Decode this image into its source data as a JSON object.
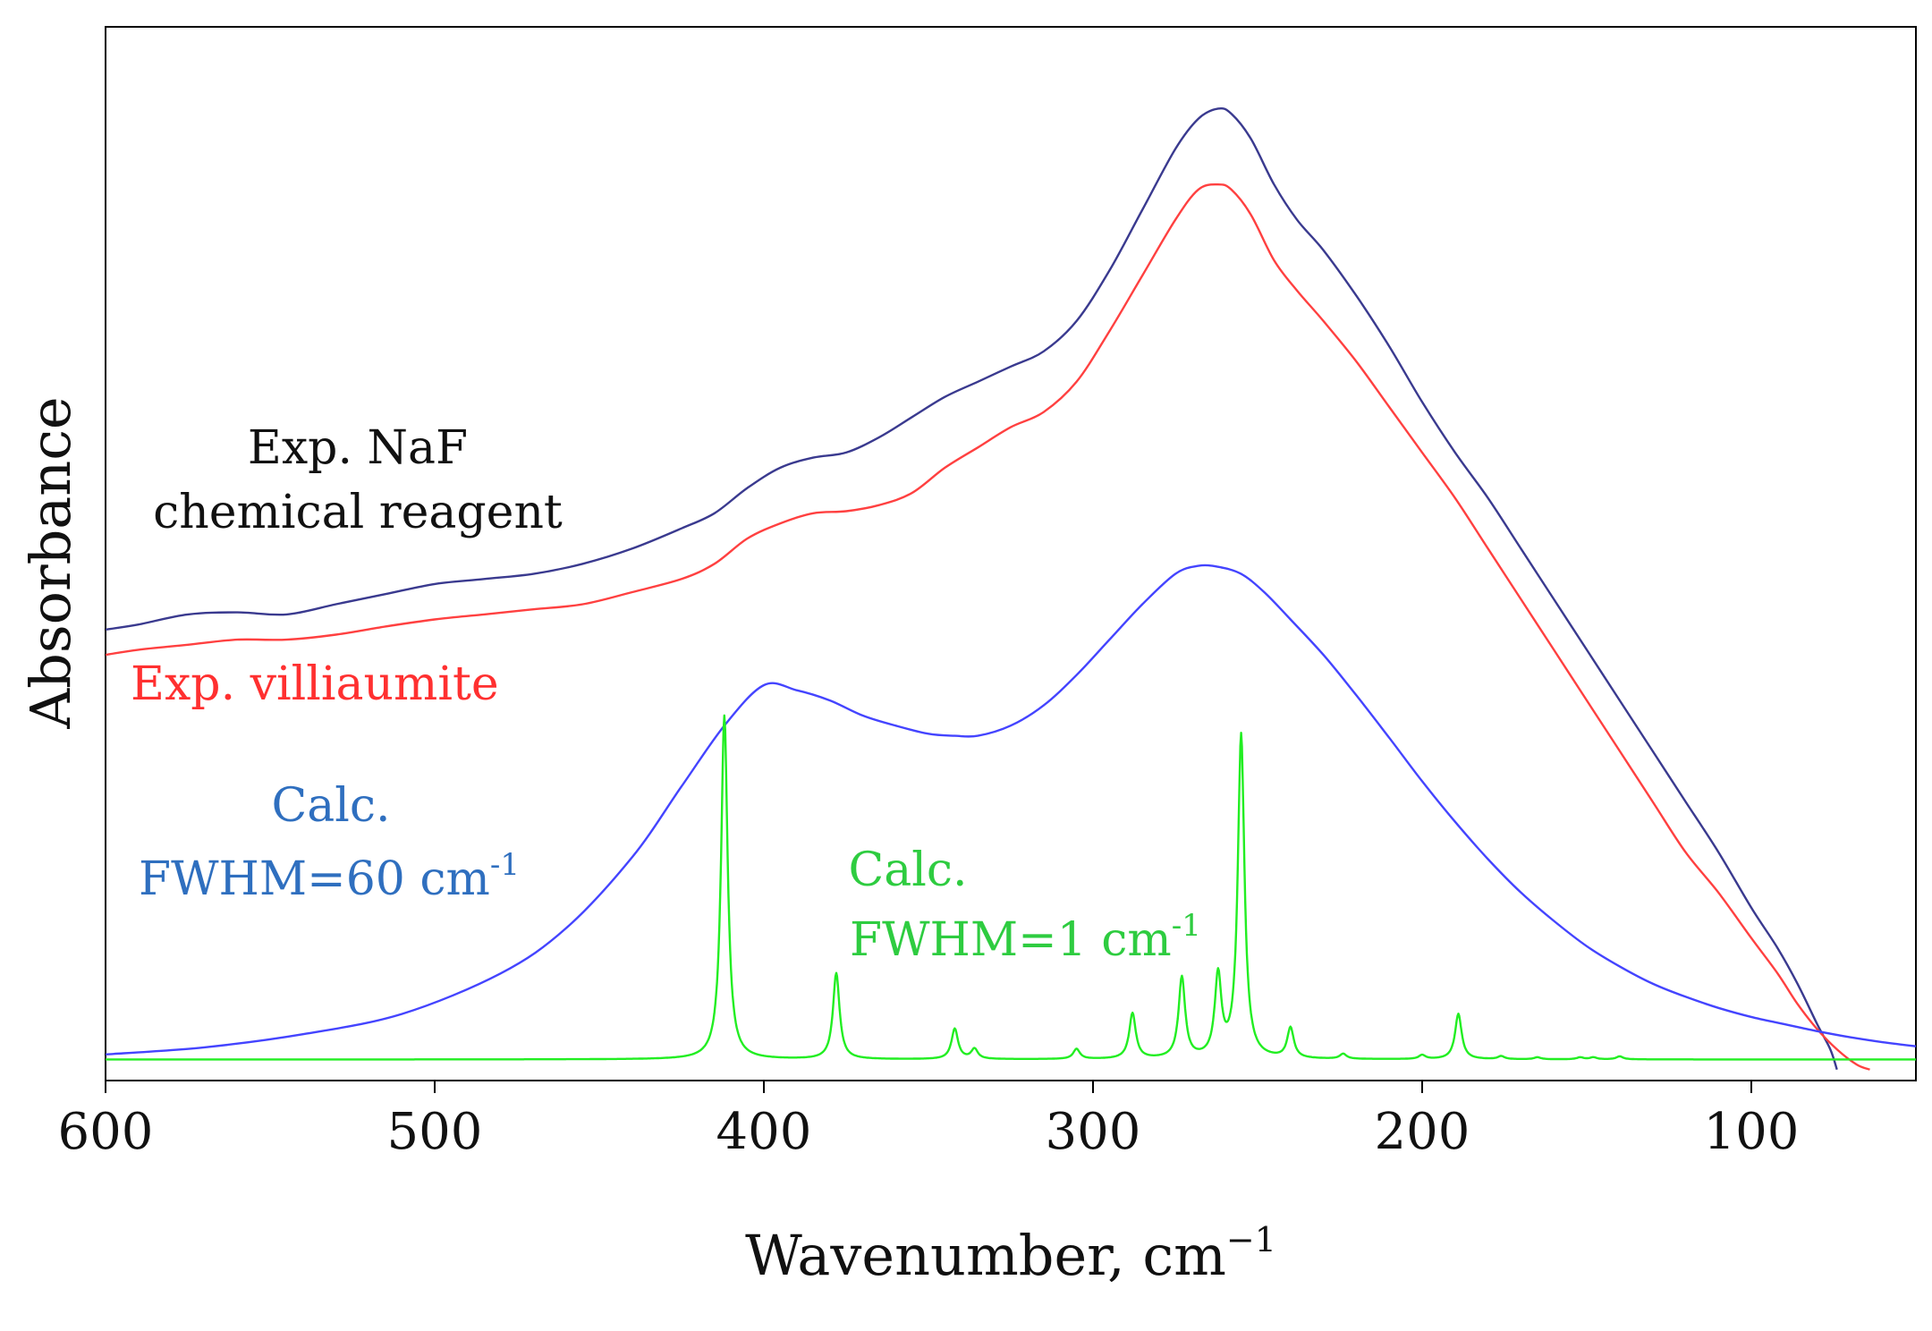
{
  "chart_data": {
    "type": "line",
    "title": "",
    "xlabel": "Wavenumber, cm",
    "xlabel_superscript": "−1",
    "ylabel": "Absorbance",
    "xlim": [
      600,
      50
    ],
    "ylim": [
      0,
      1
    ],
    "x_ticks": [
      600,
      500,
      400,
      300,
      200,
      100
    ],
    "grid": false,
    "colors": {
      "exp_naf": "#3a3a8f",
      "exp_villiaumite": "#ff4040",
      "calc_fwhm60": "#4444ff",
      "calc_fwhm1": "#22ee22",
      "annotation_naf": "#111111",
      "annotation_villiaumite": "#ff3030",
      "annotation_calc60": "#2f6fbf",
      "annotation_calc1": "#2ecc40"
    },
    "annotations": {
      "naf_line1": "Exp. NaF",
      "naf_line2": "chemical reagent",
      "villiaumite": "Exp. villiaumite",
      "calc60_line1": "Calc.",
      "calc60_line2": "FWHM=60 cm",
      "calc60_sup": "-1",
      "calc1_line1": "Calc.",
      "calc1_line2": "FWHM=1 cm",
      "calc1_sup": "-1"
    },
    "series": [
      {
        "name": "Exp. NaF chemical reagent",
        "color_key": "exp_naf",
        "x": [
          600,
          590,
          575,
          560,
          545,
          530,
          515,
          500,
          485,
          470,
          455,
          440,
          425,
          415,
          405,
          395,
          385,
          375,
          365,
          355,
          345,
          335,
          325,
          315,
          305,
          295,
          285,
          275,
          268,
          262,
          258,
          252,
          245,
          238,
          230,
          220,
          210,
          200,
          190,
          180,
          170,
          160,
          150,
          140,
          130,
          120,
          110,
          100,
          92,
          86,
          80,
          76,
          74
        ],
        "y": [
          0.425,
          0.43,
          0.44,
          0.442,
          0.44,
          0.45,
          0.46,
          0.47,
          0.475,
          0.48,
          0.49,
          0.505,
          0.525,
          0.54,
          0.565,
          0.585,
          0.595,
          0.6,
          0.615,
          0.635,
          0.655,
          0.67,
          0.685,
          0.7,
          0.73,
          0.78,
          0.84,
          0.9,
          0.93,
          0.94,
          0.935,
          0.91,
          0.865,
          0.83,
          0.8,
          0.755,
          0.705,
          0.65,
          0.6,
          0.555,
          0.505,
          0.455,
          0.405,
          0.355,
          0.305,
          0.255,
          0.205,
          0.15,
          0.11,
          0.075,
          0.035,
          0.01,
          -0.01
        ]
      },
      {
        "name": "Exp. villiaumite",
        "color_key": "exp_villiaumite",
        "x": [
          600,
          590,
          575,
          560,
          545,
          530,
          515,
          500,
          485,
          470,
          455,
          440,
          425,
          415,
          405,
          395,
          385,
          375,
          365,
          355,
          345,
          335,
          325,
          315,
          305,
          295,
          285,
          275,
          268,
          262,
          258,
          252,
          245,
          238,
          230,
          220,
          210,
          200,
          190,
          180,
          170,
          160,
          150,
          140,
          130,
          120,
          110,
          100,
          92,
          86,
          80,
          74,
          68,
          64
        ],
        "y": [
          0.4,
          0.405,
          0.41,
          0.415,
          0.415,
          0.42,
          0.428,
          0.435,
          0.44,
          0.445,
          0.45,
          0.462,
          0.475,
          0.49,
          0.515,
          0.53,
          0.54,
          0.542,
          0.548,
          0.56,
          0.585,
          0.605,
          0.625,
          0.64,
          0.67,
          0.72,
          0.775,
          0.83,
          0.86,
          0.865,
          0.86,
          0.835,
          0.79,
          0.76,
          0.73,
          0.69,
          0.645,
          0.6,
          0.555,
          0.505,
          0.455,
          0.405,
          0.355,
          0.305,
          0.255,
          0.205,
          0.165,
          0.12,
          0.085,
          0.055,
          0.03,
          0.01,
          -0.005,
          -0.01
        ]
      },
      {
        "name": "Calc. FWHM=60 cm-1",
        "color_key": "calc_fwhm60",
        "x": [
          600,
          570,
          540,
          510,
          480,
          460,
          440,
          425,
          412,
          400,
          390,
          380,
          370,
          360,
          350,
          342,
          335,
          325,
          315,
          305,
          295,
          285,
          275,
          268,
          262,
          255,
          248,
          240,
          230,
          220,
          210,
          200,
          190,
          180,
          170,
          160,
          150,
          140,
          130,
          120,
          110,
          100,
          90,
          80,
          70,
          60,
          50
        ],
        "y": [
          0.005,
          0.012,
          0.025,
          0.045,
          0.085,
          0.13,
          0.2,
          0.27,
          0.33,
          0.37,
          0.365,
          0.355,
          0.34,
          0.33,
          0.322,
          0.32,
          0.32,
          0.33,
          0.35,
          0.38,
          0.415,
          0.45,
          0.48,
          0.488,
          0.487,
          0.48,
          0.462,
          0.435,
          0.4,
          0.36,
          0.318,
          0.275,
          0.235,
          0.198,
          0.165,
          0.137,
          0.112,
          0.092,
          0.075,
          0.062,
          0.051,
          0.042,
          0.035,
          0.028,
          0.022,
          0.017,
          0.013
        ]
      },
      {
        "name": "Calc. FWHM=1 cm-1",
        "color_key": "calc_fwhm1",
        "baseline": 0,
        "peaks": [
          {
            "x": 412,
            "y": 0.34
          },
          {
            "x": 378,
            "y": 0.085
          },
          {
            "x": 342,
            "y": 0.03
          },
          {
            "x": 336,
            "y": 0.01
          },
          {
            "x": 305,
            "y": 0.01
          },
          {
            "x": 288,
            "y": 0.045
          },
          {
            "x": 273,
            "y": 0.08
          },
          {
            "x": 262,
            "y": 0.08
          },
          {
            "x": 255,
            "y": 0.32
          },
          {
            "x": 240,
            "y": 0.03
          },
          {
            "x": 224,
            "y": 0.005
          },
          {
            "x": 200,
            "y": 0.004
          },
          {
            "x": 189,
            "y": 0.045
          },
          {
            "x": 176,
            "y": 0.003
          },
          {
            "x": 165,
            "y": 0.002
          },
          {
            "x": 152,
            "y": 0.002
          },
          {
            "x": 148,
            "y": 0.002
          },
          {
            "x": 140,
            "y": 0.003
          }
        ],
        "half_width": 1.2
      }
    ]
  }
}
